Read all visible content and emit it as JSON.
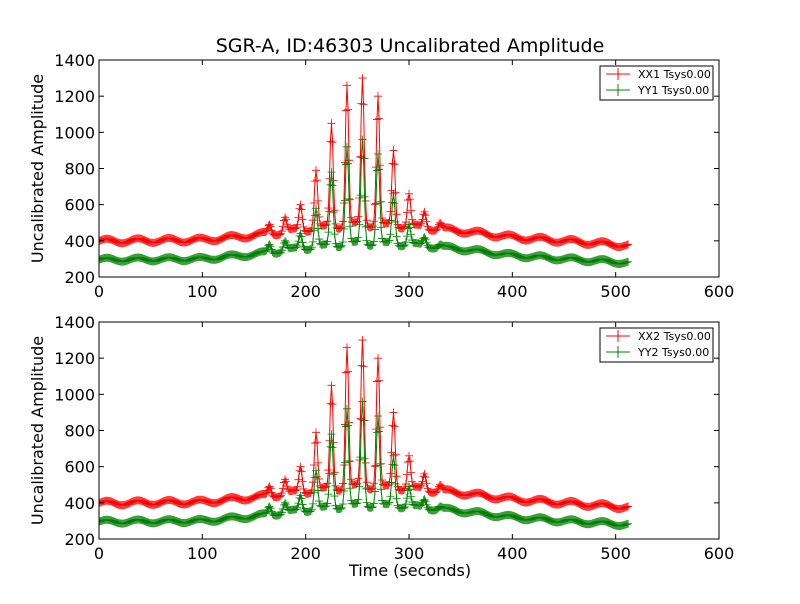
{
  "chart_data": [
    {
      "type": "line",
      "title": "SGR-A, ID:46303 Uncalibrated Amplitude",
      "xlabel": "",
      "ylabel": "Uncalibrated Amplitude",
      "xlim": [
        0,
        600
      ],
      "ylim": [
        200,
        1400
      ],
      "xticks": [
        0,
        100,
        200,
        300,
        400,
        500,
        600
      ],
      "yticks": [
        200,
        400,
        600,
        800,
        1000,
        1200,
        1400
      ],
      "legend_position": "top-right",
      "grid": false,
      "marker": "+",
      "x_start": 0,
      "x_end": 512,
      "x_step": 1,
      "series": [
        {
          "name": "XX1 Tsys0.00",
          "color": "#ff0000",
          "baseline_profile": [
            [
              0,
              398
            ],
            [
              100,
              405
            ],
            [
              150,
              430
            ],
            [
              200,
              462
            ],
            [
              250,
              490
            ],
            [
              300,
              480
            ],
            [
              350,
              455
            ],
            [
              400,
              420
            ],
            [
              450,
              400
            ],
            [
              512,
              375
            ]
          ],
          "ripple_amplitude": 13,
          "ripple_period": 30,
          "peaks": [
            [
              165,
              490
            ],
            [
              180,
              530
            ],
            [
              195,
              600
            ],
            [
              210,
              790
            ],
            [
              225,
              1050
            ],
            [
              240,
              1260
            ],
            [
              255,
              1300
            ],
            [
              270,
              1200
            ],
            [
              285,
              900
            ],
            [
              300,
              660
            ],
            [
              315,
              560
            ],
            [
              330,
              500
            ]
          ]
        },
        {
          "name": "YY1 Tsys0.00",
          "color": "#008000",
          "baseline_profile": [
            [
              0,
              295
            ],
            [
              100,
              300
            ],
            [
              150,
              325
            ],
            [
              200,
              360
            ],
            [
              250,
              385
            ],
            [
              300,
              380
            ],
            [
              350,
              355
            ],
            [
              400,
              320
            ],
            [
              450,
              300
            ],
            [
              512,
              280
            ]
          ],
          "ripple_amplitude": 11,
          "ripple_period": 30,
          "peaks": [
            [
              165,
              380
            ],
            [
              180,
              400
            ],
            [
              195,
              440
            ],
            [
              210,
              580
            ],
            [
              225,
              780
            ],
            [
              240,
              920
            ],
            [
              255,
              960
            ],
            [
              270,
              880
            ],
            [
              285,
              660
            ],
            [
              300,
              490
            ],
            [
              315,
              420
            ],
            [
              330,
              380
            ]
          ]
        }
      ]
    },
    {
      "type": "line",
      "title": "",
      "xlabel": "Time (seconds)",
      "ylabel": "Uncalibrated Amplitude",
      "xlim": [
        0,
        600
      ],
      "ylim": [
        200,
        1400
      ],
      "xticks": [
        0,
        100,
        200,
        300,
        400,
        500,
        600
      ],
      "yticks": [
        200,
        400,
        600,
        800,
        1000,
        1200,
        1400
      ],
      "legend_position": "top-right",
      "grid": false,
      "marker": "+",
      "x_start": 0,
      "x_end": 512,
      "x_step": 1,
      "series": [
        {
          "name": "XX2 Tsys0.00",
          "color": "#ff0000",
          "baseline_profile": [
            [
              0,
              398
            ],
            [
              100,
              405
            ],
            [
              150,
              430
            ],
            [
              200,
              462
            ],
            [
              250,
              490
            ],
            [
              300,
              480
            ],
            [
              350,
              455
            ],
            [
              400,
              420
            ],
            [
              450,
              400
            ],
            [
              512,
              375
            ]
          ],
          "ripple_amplitude": 13,
          "ripple_period": 30,
          "peaks": [
            [
              165,
              490
            ],
            [
              180,
              530
            ],
            [
              195,
              600
            ],
            [
              210,
              790
            ],
            [
              225,
              1050
            ],
            [
              240,
              1260
            ],
            [
              255,
              1300
            ],
            [
              270,
              1200
            ],
            [
              285,
              900
            ],
            [
              300,
              660
            ],
            [
              315,
              560
            ],
            [
              330,
              500
            ]
          ]
        },
        {
          "name": "YY2 Tsys0.00",
          "color": "#008000",
          "baseline_profile": [
            [
              0,
              295
            ],
            [
              100,
              300
            ],
            [
              150,
              325
            ],
            [
              200,
              360
            ],
            [
              250,
              385
            ],
            [
              300,
              380
            ],
            [
              350,
              355
            ],
            [
              400,
              320
            ],
            [
              450,
              300
            ],
            [
              512,
              280
            ]
          ],
          "ripple_amplitude": 11,
          "ripple_period": 30,
          "peaks": [
            [
              165,
              380
            ],
            [
              180,
              400
            ],
            [
              195,
              440
            ],
            [
              210,
              580
            ],
            [
              225,
              780
            ],
            [
              240,
              920
            ],
            [
              255,
              960
            ],
            [
              270,
              880
            ],
            [
              285,
              660
            ],
            [
              300,
              490
            ],
            [
              315,
              420
            ],
            [
              330,
              380
            ]
          ]
        }
      ]
    }
  ]
}
